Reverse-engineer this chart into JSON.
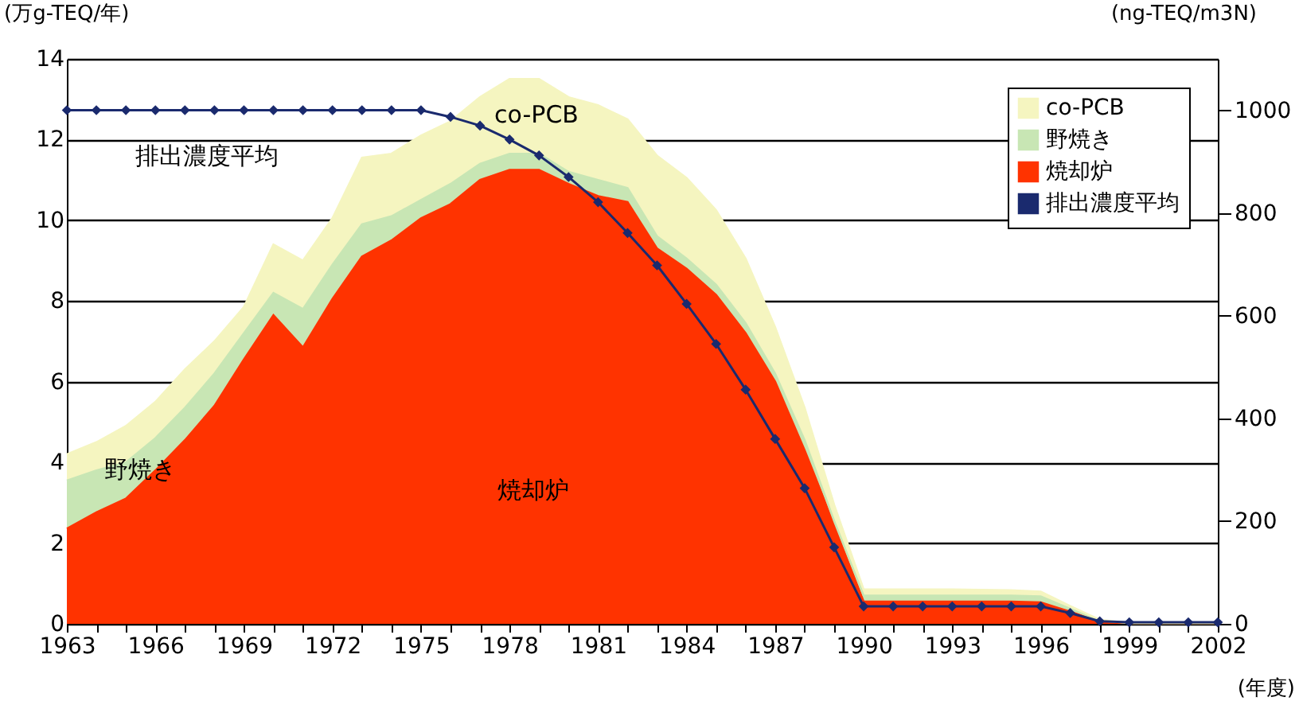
{
  "chart_data": {
    "type": "area",
    "stacked": true,
    "ylabel": "(万g-TEQ/年)",
    "y2label": "(ng-TEQ/m3N)",
    "xlabel": "(年度)",
    "x": [
      1963,
      1964,
      1965,
      1966,
      1967,
      1968,
      1969,
      1970,
      1971,
      1972,
      1973,
      1974,
      1975,
      1976,
      1977,
      1978,
      1979,
      1980,
      1981,
      1982,
      1983,
      1984,
      1985,
      1986,
      1987,
      1988,
      1989,
      1990,
      1991,
      1992,
      1993,
      1994,
      1995,
      1996,
      1997,
      1998,
      1999,
      2000,
      2001,
      2002
    ],
    "series": [
      {
        "name": "焼却炉",
        "color": "#ff3300",
        "values": [
          2.36,
          2.76,
          3.1,
          3.8,
          4.55,
          5.4,
          6.55,
          7.65,
          6.85,
          8.05,
          9.1,
          9.5,
          10.05,
          10.4,
          11.0,
          11.25,
          11.25,
          10.9,
          10.6,
          10.45,
          9.3,
          8.8,
          8.15,
          7.2,
          6.0,
          4.3,
          2.45,
          0.55,
          0.55,
          0.55,
          0.55,
          0.55,
          0.55,
          0.53,
          0.3,
          0.07,
          0.02,
          0.02,
          0.02,
          0.02
        ]
      },
      {
        "name": "野焼き",
        "color": "#c8e6b4",
        "values": [
          1.19,
          1.04,
          0.9,
          0.8,
          0.8,
          0.8,
          0.65,
          0.55,
          0.95,
          0.85,
          0.8,
          0.6,
          0.45,
          0.5,
          0.4,
          0.4,
          0.4,
          0.3,
          0.4,
          0.35,
          0.3,
          0.25,
          0.25,
          0.25,
          0.2,
          0.25,
          0.1,
          0.15,
          0.15,
          0.15,
          0.15,
          0.15,
          0.15,
          0.15,
          0.07,
          0.01,
          0.0,
          0.0,
          0.0,
          0.0
        ]
      },
      {
        "name": "co-PCB",
        "color": "#f5f5c0",
        "values": [
          0.65,
          0.7,
          0.9,
          0.9,
          0.95,
          0.8,
          0.65,
          1.2,
          1.2,
          1.15,
          1.65,
          1.55,
          1.6,
          1.55,
          1.65,
          1.85,
          1.85,
          1.85,
          1.85,
          1.7,
          2.0,
          2.0,
          1.85,
          1.6,
          1.15,
          0.8,
          0.4,
          0.15,
          0.15,
          0.15,
          0.15,
          0.14,
          0.13,
          0.12,
          0.07,
          0.02,
          0.0,
          0.0,
          0.0,
          0.0
        ]
      },
      {
        "name": "排出濃度平均",
        "type": "line",
        "axis": "y2",
        "color": "#1a2a6e",
        "marker": "diamond",
        "values": [
          1000,
          1000,
          1000,
          1000,
          1000,
          1000,
          1000,
          1000,
          1000,
          1000,
          1000,
          1000,
          1000,
          987,
          970,
          943,
          912,
          870,
          821,
          761,
          698,
          623,
          545,
          456,
          360,
          264,
          149,
          34,
          34,
          34,
          34,
          34,
          34,
          34,
          21,
          5,
          3,
          3,
          3,
          3
        ]
      }
    ],
    "xlim": [
      1963,
      2002
    ],
    "xticks": [
      1963,
      {
        "value": 1964,
        "label": null
      },
      {
        "value": 1965,
        "label": null
      },
      1966,
      {
        "value": 1967,
        "label": null
      },
      {
        "value": 1968,
        "label": null
      },
      1969,
      {
        "value": 1970,
        "label": null
      },
      {
        "value": 1971,
        "label": null
      },
      1972,
      {
        "value": 1973,
        "label": null
      },
      {
        "value": 1974,
        "label": null
      },
      1975,
      {
        "value": 1976,
        "label": null
      },
      {
        "value": 1977,
        "label": null
      },
      1978,
      {
        "value": 1979,
        "label": null
      },
      {
        "value": 1980,
        "label": null
      },
      1981,
      {
        "value": 1982,
        "label": null
      },
      {
        "value": 1983,
        "label": null
      },
      1984,
      {
        "value": 1985,
        "label": null
      },
      {
        "value": 1986,
        "label": null
      },
      1987,
      {
        "value": 1988,
        "label": null
      },
      {
        "value": 1989,
        "label": null
      },
      1990,
      {
        "value": 1991,
        "label": null
      },
      {
        "value": 1992,
        "label": null
      },
      1993,
      {
        "value": 1994,
        "label": null
      },
      {
        "value": 1995,
        "label": null
      },
      1996,
      {
        "value": 1997,
        "label": null
      },
      {
        "value": 1998,
        "label": null
      },
      1999,
      {
        "value": 2000,
        "label": null
      },
      {
        "value": 2001,
        "label": null
      },
      2002
    ],
    "ylim": [
      0,
      14
    ],
    "yticks": [
      0,
      2,
      4,
      6,
      8,
      10,
      12,
      14
    ],
    "y2lim": [
      0,
      1100
    ],
    "y2ticks": [
      0,
      200,
      400,
      600,
      800,
      1000
    ],
    "grid": "y",
    "legend": "top right",
    "annotations": [
      "排出濃度平均",
      "co-PCB",
      "野焼き",
      "焼却炉"
    ]
  }
}
